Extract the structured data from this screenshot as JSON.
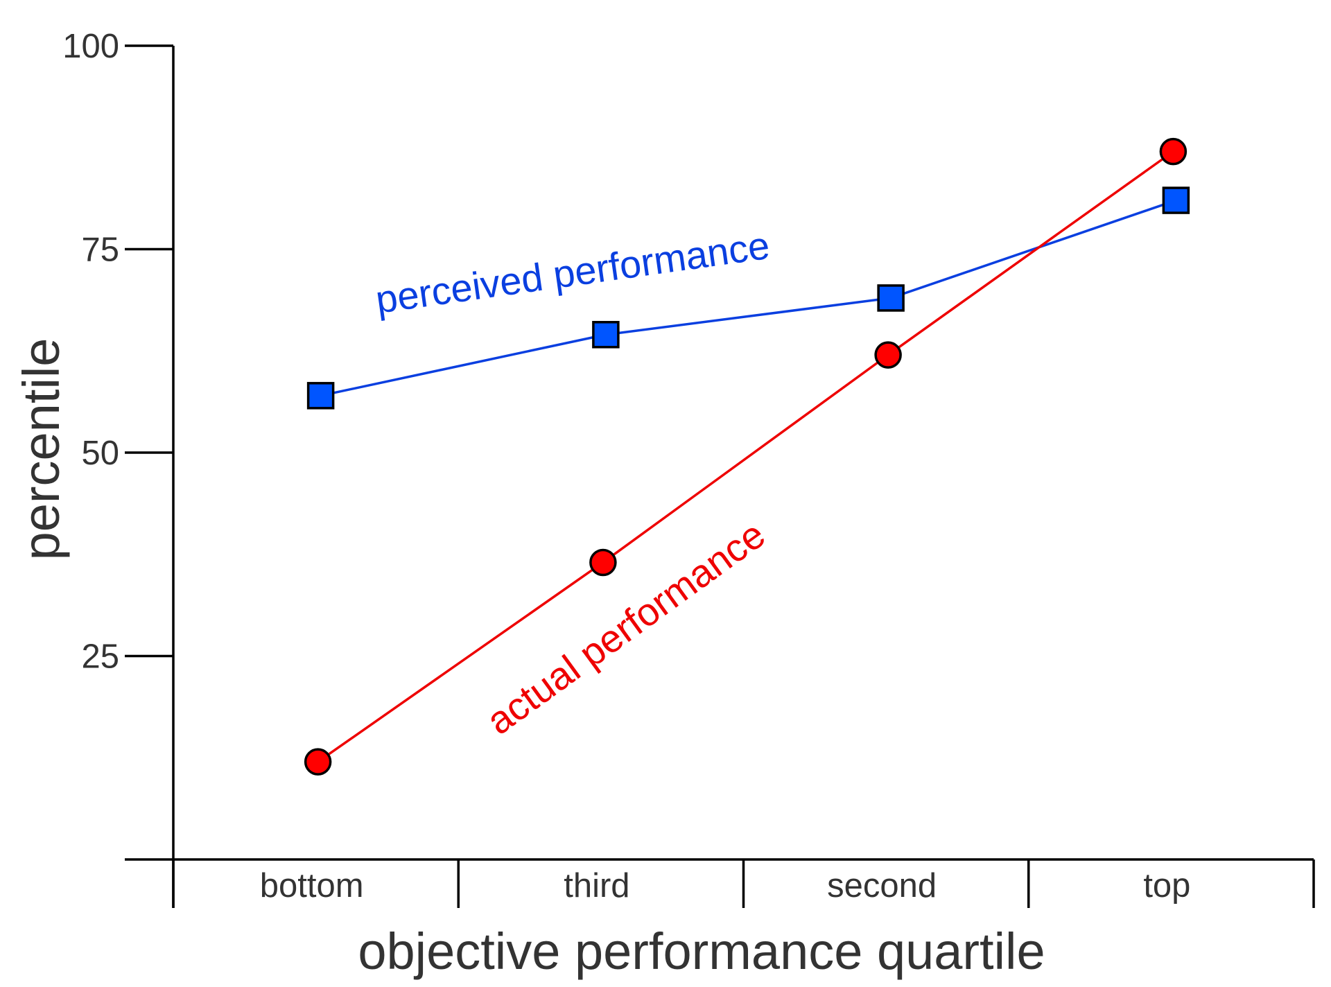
{
  "chart_data": {
    "type": "line",
    "title": "",
    "xlabel": "objective performance quartile",
    "ylabel": "percentile",
    "categories": [
      "bottom",
      "third",
      "second",
      "top"
    ],
    "ylim": [
      0,
      100
    ],
    "yticks": [
      25,
      50,
      75,
      100
    ],
    "grid": false,
    "legend": "inline labels",
    "series": [
      {
        "name": "perceived performance",
        "marker": "square",
        "color": "#0a3fe0",
        "fill": "#0055ff",
        "values": [
          57,
          64.5,
          69,
          81
        ]
      },
      {
        "name": "actual performance",
        "marker": "circle",
        "color": "#ee0000",
        "fill": "#ff0000",
        "values": [
          12,
          36.5,
          62,
          87
        ]
      }
    ]
  }
}
